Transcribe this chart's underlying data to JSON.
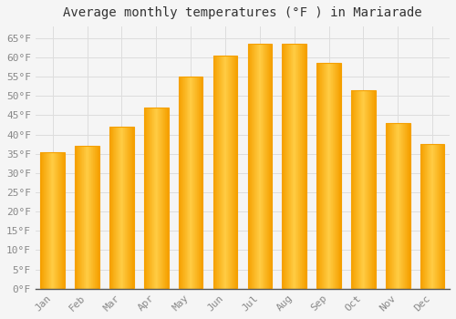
{
  "title": "Average monthly temperatures (°F ) in Mariarade",
  "months": [
    "Jan",
    "Feb",
    "Mar",
    "Apr",
    "May",
    "Jun",
    "Jul",
    "Aug",
    "Sep",
    "Oct",
    "Nov",
    "Dec"
  ],
  "values": [
    35.5,
    37.0,
    42.0,
    47.0,
    55.0,
    60.5,
    63.5,
    63.5,
    58.5,
    51.5,
    43.0,
    37.5
  ],
  "bar_color_center": "#FFCC44",
  "bar_color_edge": "#F5A000",
  "background_color": "#F5F5F5",
  "plot_bg_color": "#F5F5F5",
  "grid_color": "#DDDDDD",
  "ylim": [
    0,
    68
  ],
  "yticks": [
    0,
    5,
    10,
    15,
    20,
    25,
    30,
    35,
    40,
    45,
    50,
    55,
    60,
    65
  ],
  "title_fontsize": 10,
  "tick_fontsize": 8,
  "tick_color": "#888888",
  "title_color": "#333333",
  "font_family": "monospace",
  "bar_width": 0.7
}
